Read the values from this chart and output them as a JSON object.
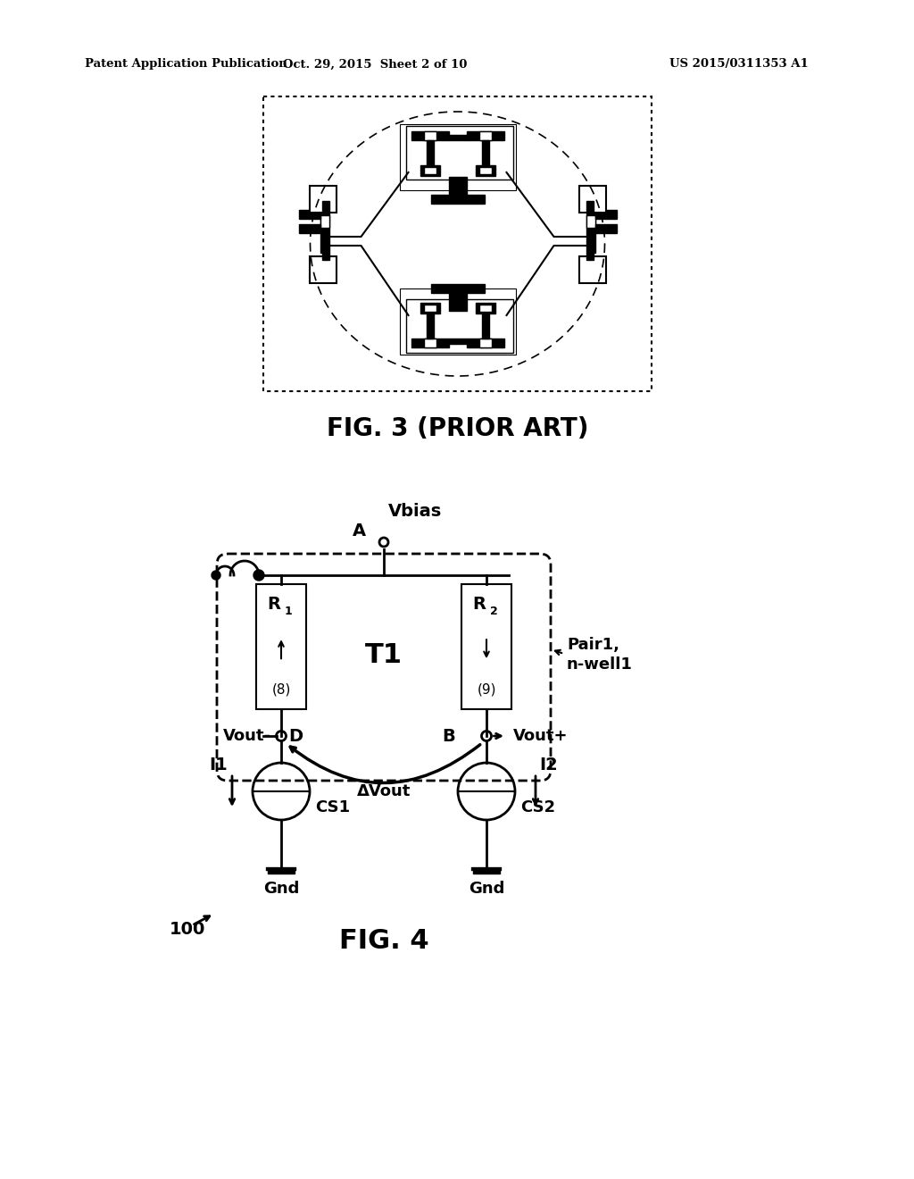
{
  "header_left": "Patent Application Publication",
  "header_mid": "Oct. 29, 2015  Sheet 2 of 10",
  "header_right": "US 2015/0311353 A1",
  "fig3_label": "FIG. 3 (PRIOR ART)",
  "fig4_label": "FIG. 4",
  "label_100": "100",
  "label_vbias": "Vbias",
  "label_A": "A",
  "label_T1": "T1",
  "label_R1": "R",
  "label_R2": "R",
  "label_8": "(8)",
  "label_9": "(9)",
  "label_pair1": "Pair1,",
  "label_nwell1": "n-well1",
  "label_D": "D",
  "label_B": "B",
  "label_vout_minus": "Vout-",
  "label_vout_plus": "Vout+",
  "label_delta_vout": "ΔVout",
  "label_I1": "I1",
  "label_I2": "I2",
  "label_CS1": "CS1",
  "label_CS2": "CS2",
  "label_Gnd1": "Gnd",
  "label_Gnd2": "Gnd",
  "bg_color": "#ffffff",
  "line_color": "#000000"
}
